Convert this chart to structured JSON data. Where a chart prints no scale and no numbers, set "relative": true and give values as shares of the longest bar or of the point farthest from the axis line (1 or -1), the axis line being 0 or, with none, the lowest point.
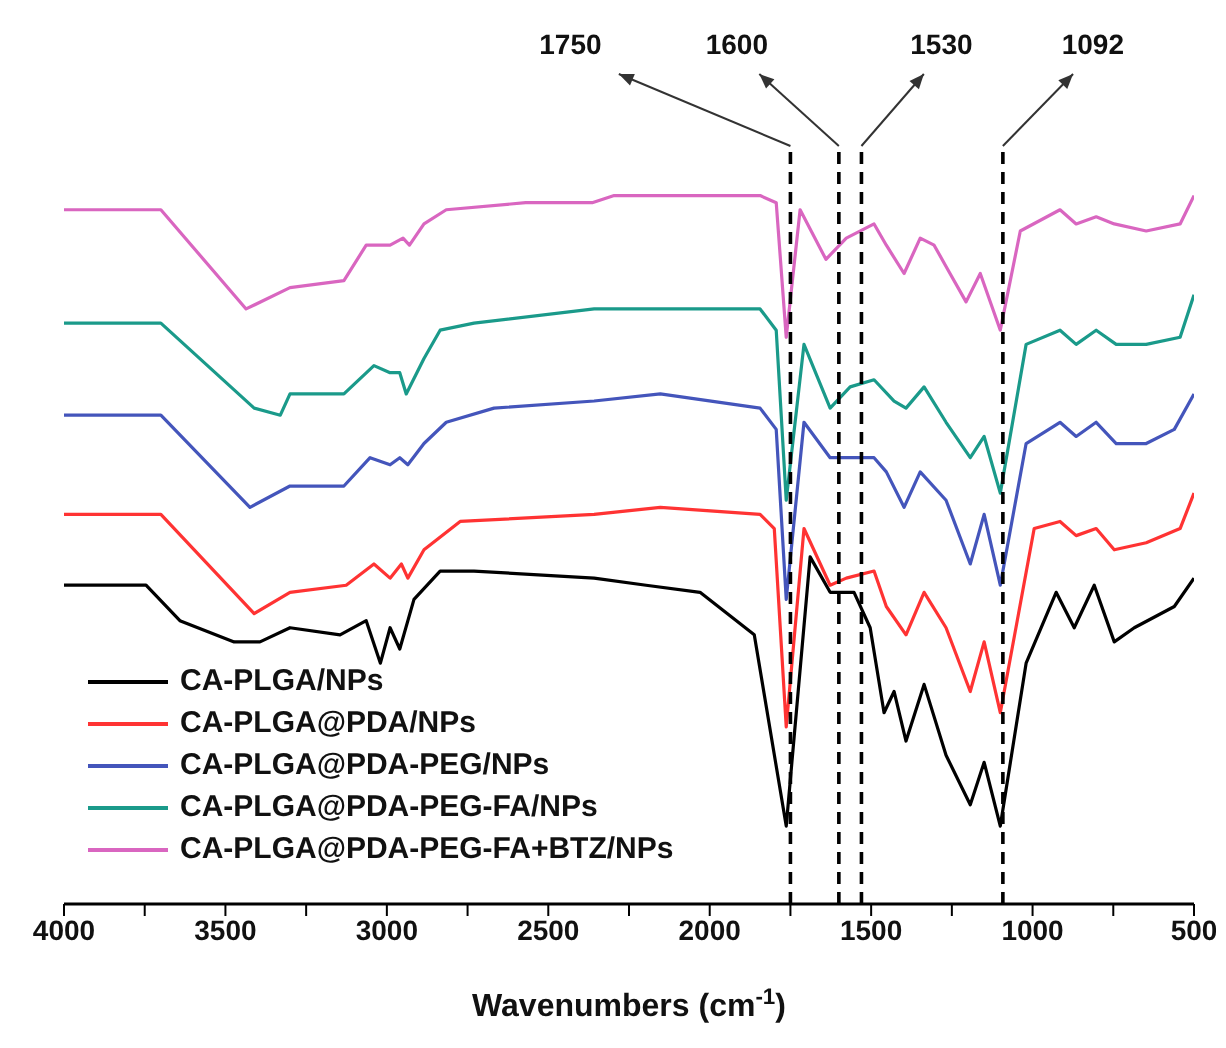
{
  "chart_data": {
    "type": "line",
    "relative": true,
    "xlabel": "Wavenumbers (cm$^{-1}$)",
    "xlim": [
      4000,
      500
    ],
    "xticks": [
      4000,
      {
        "value": 3750,
        "label": null
      },
      3500,
      {
        "value": 3250,
        "label": null
      },
      3000,
      {
        "value": 2750,
        "label": null
      },
      2500,
      {
        "value": 2250,
        "label": null
      },
      2000,
      {
        "value": 1750,
        "label": null
      },
      1500,
      {
        "value": 1250,
        "label": null
      },
      1000,
      {
        "value": 750,
        "label": null
      },
      500
    ],
    "tick_labels": "x",
    "grid": false,
    "legend": "bottom left",
    "marker": "none",
    "line_style": "solid",
    "ref_lines": [
      {
        "axis": "x",
        "value": 1750,
        "label": "1750",
        "line_style": "dashed",
        "color": "#000000"
      },
      {
        "axis": "x",
        "value": 1600,
        "label": "1600",
        "line_style": "dashed",
        "color": "#000000"
      },
      {
        "axis": "x",
        "value": 1530,
        "label": "1530",
        "line_style": "dashed",
        "color": "#000000"
      },
      {
        "axis": "x",
        "value": 1092,
        "label": "1092",
        "line_style": "dashed",
        "color": "#000000"
      }
    ],
    "series": [
      {
        "name": "CA-PLGA/NPs",
        "color": "#000000",
        "x": [
          4000,
          3746,
          3641,
          3473,
          3393,
          3300,
          3145,
          3064,
          3020,
          2990,
          2960,
          2916,
          2835,
          2730,
          2358,
          2197,
          2030,
          1862,
          1763,
          1689,
          1627,
          1553,
          1503,
          1460,
          1429,
          1392,
          1336,
          1268,
          1193,
          1150,
          1100,
          1020,
          927,
          871,
          809,
          747,
          685,
          561,
          500
        ],
        "values": [
          0.45,
          0.45,
          0.4,
          0.37,
          0.37,
          0.39,
          0.38,
          0.4,
          0.34,
          0.39,
          0.36,
          0.43,
          0.47,
          0.47,
          0.46,
          0.45,
          0.44,
          0.38,
          0.11,
          0.49,
          0.44,
          0.44,
          0.39,
          0.27,
          0.3,
          0.23,
          0.31,
          0.21,
          0.14,
          0.2,
          0.11,
          0.34,
          0.44,
          0.39,
          0.45,
          0.37,
          0.39,
          0.42,
          0.46
        ]
      },
      {
        "name": "CA-PLGA@PDA/NPs",
        "color": "#ff3333",
        "x": [
          4000,
          3700,
          3411,
          3300,
          3126,
          3040,
          2990,
          2955,
          2935,
          2885,
          2773,
          2358,
          2153,
          1844,
          1800,
          1763,
          1708,
          1627,
          1577,
          1491,
          1453,
          1392,
          1336,
          1268,
          1193,
          1150,
          1100,
          995,
          915,
          865,
          803,
          747,
          648,
          543,
          500
        ],
        "values": [
          0.55,
          0.55,
          0.41,
          0.44,
          0.45,
          0.48,
          0.46,
          0.48,
          0.46,
          0.5,
          0.54,
          0.55,
          0.56,
          0.55,
          0.53,
          0.25,
          0.53,
          0.45,
          0.46,
          0.47,
          0.42,
          0.38,
          0.44,
          0.39,
          0.3,
          0.37,
          0.27,
          0.53,
          0.54,
          0.52,
          0.53,
          0.5,
          0.51,
          0.53,
          0.58
        ]
      },
      {
        "name": "CA-PLGA@PDA-PEG/NPs",
        "color": "#4455bb",
        "x": [
          4000,
          3700,
          3424,
          3300,
          3133,
          3052,
          2990,
          2960,
          2935,
          2885,
          2816,
          2668,
          2358,
          2153,
          1844,
          1794,
          1763,
          1708,
          1627,
          1553,
          1491,
          1453,
          1398,
          1348,
          1268,
          1193,
          1150,
          1100,
          1020,
          915,
          865,
          803,
          741,
          648,
          561,
          500
        ],
        "values": [
          0.69,
          0.69,
          0.56,
          0.59,
          0.59,
          0.63,
          0.62,
          0.63,
          0.62,
          0.65,
          0.68,
          0.7,
          0.71,
          0.72,
          0.7,
          0.67,
          0.43,
          0.68,
          0.63,
          0.63,
          0.63,
          0.61,
          0.56,
          0.61,
          0.57,
          0.48,
          0.55,
          0.45,
          0.65,
          0.68,
          0.66,
          0.68,
          0.65,
          0.65,
          0.67,
          0.72
        ]
      },
      {
        "name": "CA-PLGA@PDA-PEG-FA/NPs",
        "color": "#1a9a8a",
        "x": [
          4000,
          3700,
          3411,
          3330,
          3300,
          3133,
          3040,
          2990,
          2960,
          2940,
          2885,
          2835,
          2730,
          2358,
          2153,
          1844,
          1794,
          1763,
          1708,
          1627,
          1565,
          1491,
          1429,
          1392,
          1336,
          1268,
          1193,
          1150,
          1100,
          1020,
          915,
          865,
          803,
          741,
          648,
          543,
          500
        ],
        "values": [
          0.82,
          0.82,
          0.7,
          0.69,
          0.72,
          0.72,
          0.76,
          0.75,
          0.75,
          0.72,
          0.77,
          0.81,
          0.82,
          0.84,
          0.84,
          0.84,
          0.81,
          0.57,
          0.79,
          0.7,
          0.73,
          0.74,
          0.71,
          0.7,
          0.73,
          0.68,
          0.63,
          0.66,
          0.58,
          0.79,
          0.81,
          0.79,
          0.81,
          0.79,
          0.79,
          0.8,
          0.86
        ]
      },
      {
        "name": "CA-PLGA@PDA-PEG-FA+BTZ/NPs",
        "color": "#d966c0",
        "x": [
          4000,
          3700,
          3436,
          3300,
          3133,
          3064,
          2990,
          2950,
          2930,
          2885,
          2816,
          2570,
          2364,
          2296,
          2153,
          1844,
          1794,
          1763,
          1720,
          1640,
          1577,
          1491,
          1453,
          1398,
          1348,
          1305,
          1268,
          1206,
          1162,
          1100,
          1038,
          915,
          865,
          803,
          747,
          648,
          543,
          500
        ],
        "values": [
          0.98,
          0.98,
          0.84,
          0.87,
          0.88,
          0.93,
          0.93,
          0.94,
          0.93,
          0.96,
          0.98,
          0.99,
          0.99,
          1.0,
          1.0,
          1.0,
          0.99,
          0.8,
          0.98,
          0.91,
          0.94,
          0.96,
          0.93,
          0.89,
          0.94,
          0.93,
          0.9,
          0.85,
          0.89,
          0.81,
          0.95,
          0.98,
          0.96,
          0.97,
          0.96,
          0.95,
          0.96,
          1.0
        ]
      }
    ]
  }
}
